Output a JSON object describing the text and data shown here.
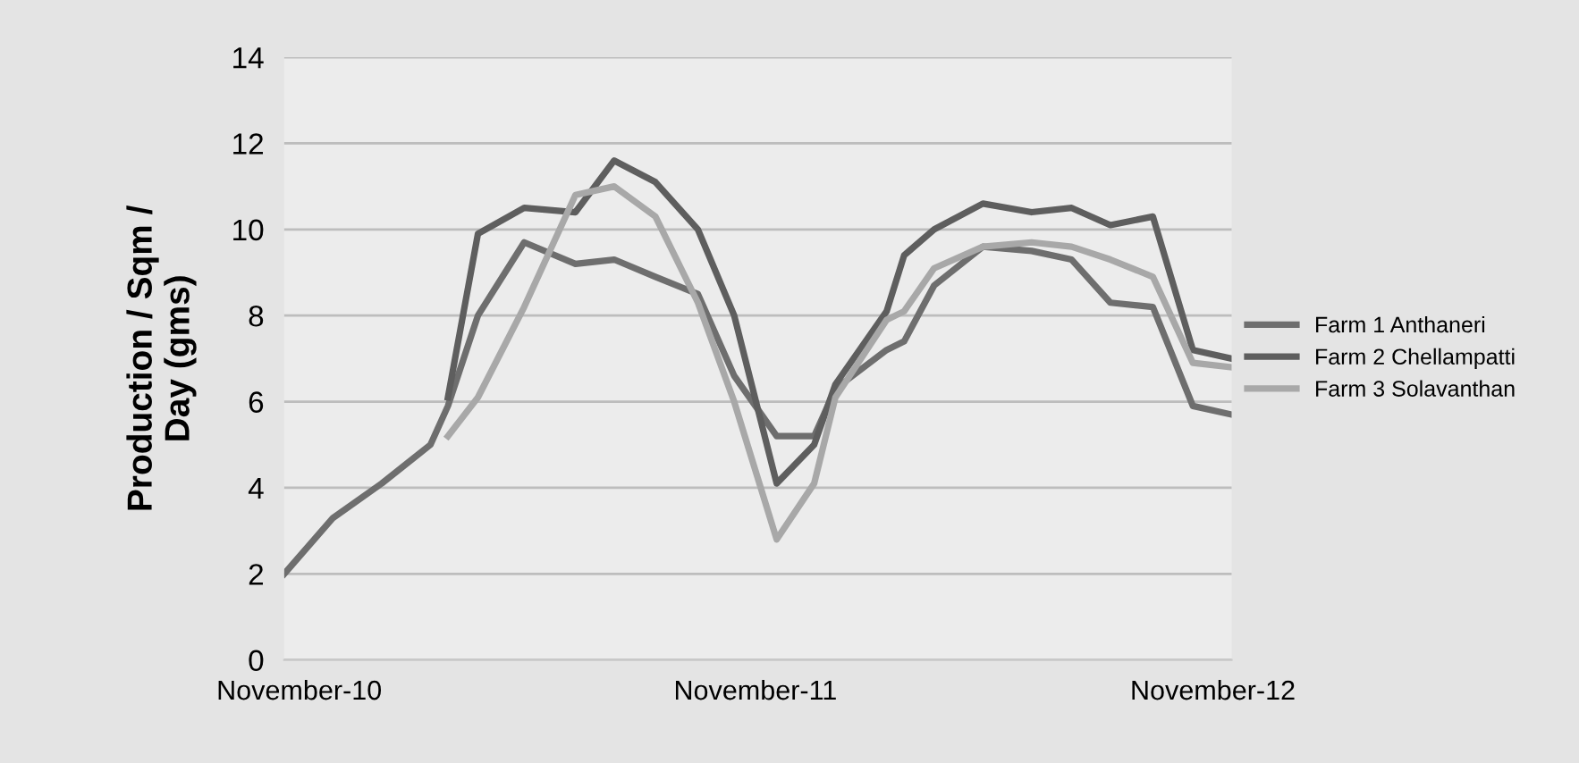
{
  "chart_data": {
    "type": "line",
    "ylabel": "Production / Sqm /\nDay (gms)",
    "x": [
      "2010-10-20",
      "2010-11-28",
      "2011-01-06",
      "2011-02-14",
      "2011-02-28",
      "2011-03-24",
      "2011-04-30",
      "2011-06-10",
      "2011-07-11",
      "2011-08-13",
      "2011-09-16",
      "2011-10-15",
      "2011-11-18",
      "2011-12-18",
      "2012-01-04",
      "2012-02-14",
      "2012-02-28",
      "2012-03-23",
      "2012-05-01",
      "2012-06-09",
      "2012-07-11",
      "2012-08-11",
      "2012-09-14",
      "2012-10-16",
      "2012-11-16"
    ],
    "series": [
      {
        "name": "Farm 1 Anthaneri",
        "color": "#6e6e6e",
        "values": [
          2.0,
          3.3,
          4.1,
          5.0,
          5.9,
          8.0,
          9.7,
          9.2,
          9.3,
          8.9,
          8.5,
          6.6,
          5.2,
          5.2,
          6.3,
          7.2,
          7.4,
          8.7,
          9.6,
          9.5,
          9.3,
          8.3,
          8.2,
          5.9,
          5.7
        ]
      },
      {
        "name": "Farm 2 Chellampatti",
        "color": "#5e5e5e",
        "values": [
          null,
          null,
          null,
          null,
          6.1,
          9.9,
          10.5,
          10.4,
          11.6,
          11.1,
          10.0,
          8.0,
          4.1,
          5.0,
          6.4,
          8.1,
          9.4,
          10.0,
          10.6,
          10.4,
          10.5,
          10.1,
          10.3,
          7.2,
          7.0
        ]
      },
      {
        "name": "Farm 3 Solavanthan",
        "color": "#a8a8a8",
        "values": [
          null,
          null,
          null,
          null,
          5.2,
          6.1,
          8.2,
          10.8,
          11.0,
          10.3,
          8.3,
          6.0,
          2.8,
          4.1,
          6.1,
          7.9,
          8.1,
          9.1,
          9.6,
          9.7,
          9.6,
          9.3,
          8.9,
          6.9,
          6.8
        ]
      }
    ],
    "xlim": [
      "2010-10-20",
      "2012-11-16"
    ],
    "xticks": [
      {
        "value": "2010-11-01",
        "label": "November-10"
      },
      {
        "value": "2011-11-01",
        "label": "November-11"
      },
      {
        "value": "2012-11-01",
        "label": "November-12"
      }
    ],
    "ylim": [
      0,
      14
    ],
    "yticks": [
      0,
      2,
      4,
      6,
      8,
      10,
      12,
      14
    ],
    "grid": "y",
    "legend": "right",
    "marker": "none",
    "line_style": "solid"
  }
}
